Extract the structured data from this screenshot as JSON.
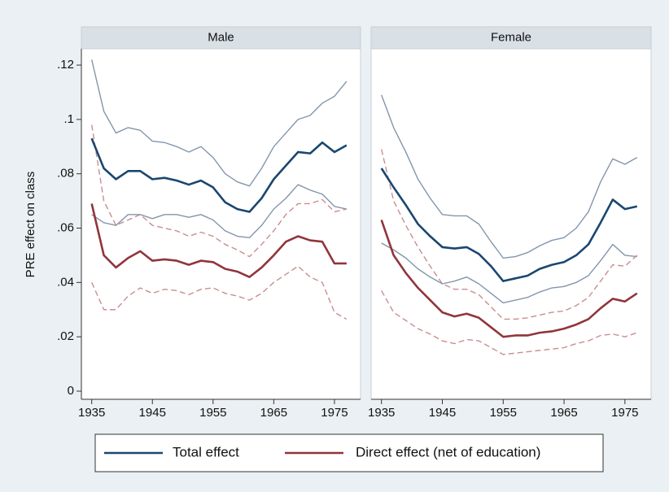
{
  "chart_data": {
    "type": "line",
    "ylabel": "PRE effect on class",
    "x": [
      1935,
      1937,
      1939,
      1941,
      1943,
      1945,
      1947,
      1949,
      1951,
      1953,
      1955,
      1957,
      1959,
      1961,
      1963,
      1965,
      1967,
      1969,
      1971,
      1973,
      1975,
      1977
    ],
    "xlim": [
      1933.3,
      1979.3
    ],
    "xticks": [
      1935,
      1945,
      1955,
      1965,
      1975
    ],
    "ylim": [
      -0.003,
      0.126
    ],
    "yticks": [
      0,
      {
        "value": 0.02,
        "label": ".02"
      },
      {
        "value": 0.04,
        "label": ".04"
      },
      {
        "value": 0.06,
        "label": ".06"
      },
      {
        "value": 0.08,
        "label": ".08"
      },
      {
        "value": 0.1,
        "label": ".1"
      },
      {
        "value": 0.12,
        "label": ".12"
      }
    ],
    "legend": "bottom",
    "series": [
      {
        "name": "Total effect",
        "color": "#1a476f",
        "ci_color": "#8296ab",
        "ci_style": "solid"
      },
      {
        "name": "Direct effect (net of education)",
        "color": "#90353b",
        "ci_color": "#c98e91",
        "ci_style": "dashed"
      }
    ],
    "panels": [
      {
        "title": "Male",
        "series": [
          {
            "values": [
              0.093,
              0.082,
              0.078,
              0.081,
              0.081,
              0.078,
              0.0785,
              0.0775,
              0.076,
              0.0775,
              0.075,
              0.0695,
              0.067,
              0.066,
              0.071,
              0.078,
              0.083,
              0.088,
              0.0875,
              0.0915,
              0.088,
              0.0905
            ],
            "upper": [
              0.122,
              0.103,
              0.095,
              0.097,
              0.096,
              0.092,
              0.0915,
              0.09,
              0.088,
              0.09,
              0.086,
              0.08,
              0.077,
              0.0755,
              0.082,
              0.09,
              0.095,
              0.1,
              0.1015,
              0.106,
              0.1085,
              0.114
            ],
            "lower": [
              0.065,
              0.062,
              0.061,
              0.065,
              0.065,
              0.0635,
              0.065,
              0.065,
              0.064,
              0.065,
              0.063,
              0.059,
              0.057,
              0.0565,
              0.061,
              0.067,
              0.071,
              0.076,
              0.074,
              0.0725,
              0.068,
              0.067
            ]
          },
          {
            "values": [
              0.069,
              0.05,
              0.0455,
              0.049,
              0.0515,
              0.048,
              0.0485,
              0.048,
              0.0465,
              0.048,
              0.0475,
              0.045,
              0.044,
              0.042,
              0.0455,
              0.05,
              0.055,
              0.057,
              0.0555,
              0.055,
              0.047,
              0.047
            ],
            "upper": [
              0.098,
              0.07,
              0.061,
              0.063,
              0.065,
              0.061,
              0.06,
              0.059,
              0.057,
              0.0585,
              0.057,
              0.054,
              0.052,
              0.0495,
              0.054,
              0.059,
              0.065,
              0.069,
              0.069,
              0.0705,
              0.066,
              0.067
            ],
            "lower": [
              0.04,
              0.03,
              0.03,
              0.035,
              0.038,
              0.036,
              0.0375,
              0.037,
              0.0355,
              0.0375,
              0.038,
              0.036,
              0.035,
              0.0335,
              0.036,
              0.04,
              0.043,
              0.046,
              0.042,
              0.04,
              0.029,
              0.0265
            ]
          }
        ]
      },
      {
        "title": "Female",
        "series": [
          {
            "values": [
              0.082,
              0.075,
              0.0685,
              0.0615,
              0.057,
              0.053,
              0.0525,
              0.053,
              0.0505,
              0.046,
              0.0405,
              0.0415,
              0.0425,
              0.045,
              0.0465,
              0.0475,
              0.05,
              0.054,
              0.062,
              0.0705,
              0.067,
              0.068
            ],
            "upper": [
              0.109,
              0.097,
              0.088,
              0.078,
              0.071,
              0.065,
              0.0645,
              0.0645,
              0.0615,
              0.055,
              0.049,
              0.0495,
              0.051,
              0.0535,
              0.0555,
              0.0565,
              0.06,
              0.066,
              0.077,
              0.0855,
              0.0835,
              0.086
            ],
            "lower": [
              0.0545,
              0.052,
              0.049,
              0.045,
              0.042,
              0.0395,
              0.0405,
              0.042,
              0.0395,
              0.036,
              0.0325,
              0.0335,
              0.0345,
              0.0365,
              0.038,
              0.0385,
              0.04,
              0.0425,
              0.048,
              0.054,
              0.05,
              0.0495
            ]
          },
          {
            "values": [
              0.063,
              0.05,
              0.0435,
              0.038,
              0.0335,
              0.029,
              0.0275,
              0.0285,
              0.027,
              0.0235,
              0.02,
              0.0205,
              0.0205,
              0.0215,
              0.022,
              0.023,
              0.0245,
              0.0265,
              0.0305,
              0.034,
              0.033,
              0.036
            ],
            "upper": [
              0.089,
              0.07,
              0.061,
              0.053,
              0.046,
              0.0395,
              0.0375,
              0.0375,
              0.0355,
              0.031,
              0.0265,
              0.0265,
              0.027,
              0.028,
              0.029,
              0.0295,
              0.0315,
              0.0345,
              0.0405,
              0.0465,
              0.046,
              0.05
            ],
            "lower": [
              0.037,
              0.029,
              0.026,
              0.023,
              0.021,
              0.0185,
              0.0175,
              0.019,
              0.0185,
              0.016,
              0.0135,
              0.014,
              0.0145,
              0.015,
              0.0155,
              0.016,
              0.0175,
              0.0185,
              0.0205,
              0.021,
              0.02,
              0.0215
            ]
          }
        ]
      }
    ]
  }
}
